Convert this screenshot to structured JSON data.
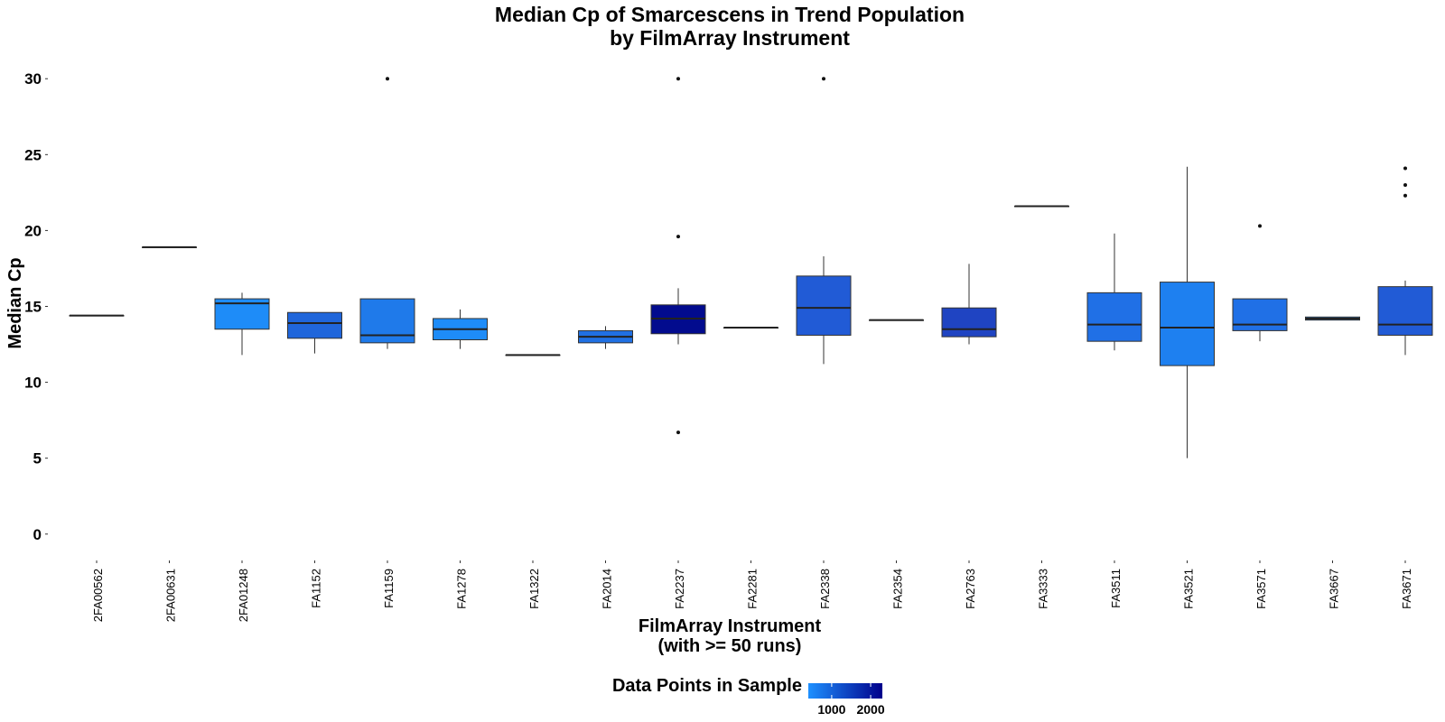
{
  "chart_data": {
    "type": "box",
    "title": "Median Cp of Smarcescens in Trend Population",
    "subtitle": "by FilmArray Instrument",
    "xlabel": "FilmArray Instrument",
    "xlabel_line2": "(with >= 50 runs)",
    "ylabel": "Median Cp",
    "ylim": [
      -1.5,
      31.5
    ],
    "yticks": [
      0,
      5,
      10,
      15,
      20,
      25,
      30
    ],
    "grid": false,
    "legend": {
      "title": "Data Points in Sample",
      "position": "bottom",
      "tick_labels": [
        "1000",
        "2000"
      ],
      "tick_values": [
        1000,
        2000
      ],
      "range": [
        400,
        2300
      ],
      "color_low": "#1E90FF",
      "color_high": "#00008B"
    },
    "categories": [
      "2FA00562",
      "2FA00631",
      "2FA01248",
      "FA1152",
      "FA1159",
      "FA1278",
      "FA1322",
      "FA2014",
      "FA2237",
      "FA2281",
      "FA2338",
      "FA2354",
      "FA2763",
      "FA3333",
      "FA3511",
      "FA3521",
      "FA3571",
      "FA3667",
      "FA3671"
    ],
    "boxes": [
      {
        "category": "2FA00562",
        "min": 14.4,
        "q1": 14.4,
        "median": 14.4,
        "q3": 14.4,
        "max": 14.4,
        "outliers": [],
        "fill": "#1E86F4"
      },
      {
        "category": "2FA00631",
        "min": 18.9,
        "q1": 18.9,
        "median": 18.9,
        "q3": 18.9,
        "max": 18.9,
        "outliers": [],
        "fill": "#1E86F4"
      },
      {
        "category": "2FA01248",
        "min": 11.8,
        "q1": 13.5,
        "median": 15.2,
        "q3": 15.5,
        "max": 15.9,
        "outliers": [],
        "fill": "#1E8CF8"
      },
      {
        "category": "FA1152",
        "min": 11.9,
        "q1": 12.9,
        "median": 13.9,
        "q3": 14.6,
        "max": 14.6,
        "outliers": [],
        "fill": "#2066DB"
      },
      {
        "category": "FA1159",
        "min": 12.2,
        "q1": 12.6,
        "median": 13.1,
        "q3": 15.5,
        "max": 15.5,
        "outliers": [
          30
        ],
        "fill": "#1F7AEA"
      },
      {
        "category": "FA1278",
        "min": 12.2,
        "q1": 12.8,
        "median": 13.5,
        "q3": 14.2,
        "max": 14.8,
        "outliers": [],
        "fill": "#1E8CF8"
      },
      {
        "category": "FA1322",
        "min": 11.8,
        "q1": 11.8,
        "median": 11.8,
        "q3": 11.8,
        "max": 11.8,
        "outliers": [],
        "fill": "#1E86F4"
      },
      {
        "category": "FA2014",
        "min": 12.2,
        "q1": 12.6,
        "median": 13.0,
        "q3": 13.4,
        "max": 13.7,
        "outliers": [],
        "fill": "#2070E3"
      },
      {
        "category": "FA2237",
        "min": 12.5,
        "q1": 13.2,
        "median": 14.2,
        "q3": 15.1,
        "max": 16.2,
        "outliers": [
          30,
          19.6,
          6.7
        ],
        "fill": "#020B8E"
      },
      {
        "category": "FA2281",
        "min": 13.6,
        "q1": 13.6,
        "median": 13.6,
        "q3": 13.6,
        "max": 13.6,
        "outliers": [],
        "fill": "#1E86F4"
      },
      {
        "category": "FA2338",
        "min": 11.2,
        "q1": 13.1,
        "median": 14.9,
        "q3": 17.0,
        "max": 18.3,
        "outliers": [
          30
        ],
        "fill": "#215BD6"
      },
      {
        "category": "FA2354",
        "min": 14.1,
        "q1": 14.1,
        "median": 14.1,
        "q3": 14.1,
        "max": 14.1,
        "outliers": [],
        "fill": "#1E86F4"
      },
      {
        "category": "FA2763",
        "min": 12.5,
        "q1": 13.0,
        "median": 13.5,
        "q3": 14.9,
        "max": 17.8,
        "outliers": [],
        "fill": "#1F44C2"
      },
      {
        "category": "FA3333",
        "min": 21.6,
        "q1": 21.6,
        "median": 21.6,
        "q3": 21.6,
        "max": 21.6,
        "outliers": [],
        "fill": "#1E86F4"
      },
      {
        "category": "FA3511",
        "min": 12.1,
        "q1": 12.7,
        "median": 13.8,
        "q3": 15.9,
        "max": 19.8,
        "outliers": [],
        "fill": "#2070E6"
      },
      {
        "category": "FA3521",
        "min": 5.0,
        "q1": 11.1,
        "median": 13.6,
        "q3": 16.6,
        "max": 24.2,
        "outliers": [],
        "fill": "#1E80F0"
      },
      {
        "category": "FA3571",
        "min": 12.7,
        "q1": 13.4,
        "median": 13.8,
        "q3": 15.5,
        "max": 15.5,
        "outliers": [
          20.3
        ],
        "fill": "#2070E6"
      },
      {
        "category": "FA3667",
        "min": 14.1,
        "q1": 14.1,
        "median": 14.2,
        "q3": 14.3,
        "max": 14.3,
        "outliers": [],
        "fill": "#1E86F4"
      },
      {
        "category": "FA3671",
        "min": 11.8,
        "q1": 13.1,
        "median": 13.8,
        "q3": 16.3,
        "max": 16.7,
        "outliers": [
          24.1,
          23.0,
          22.3
        ],
        "fill": "#215BD6"
      }
    ]
  }
}
